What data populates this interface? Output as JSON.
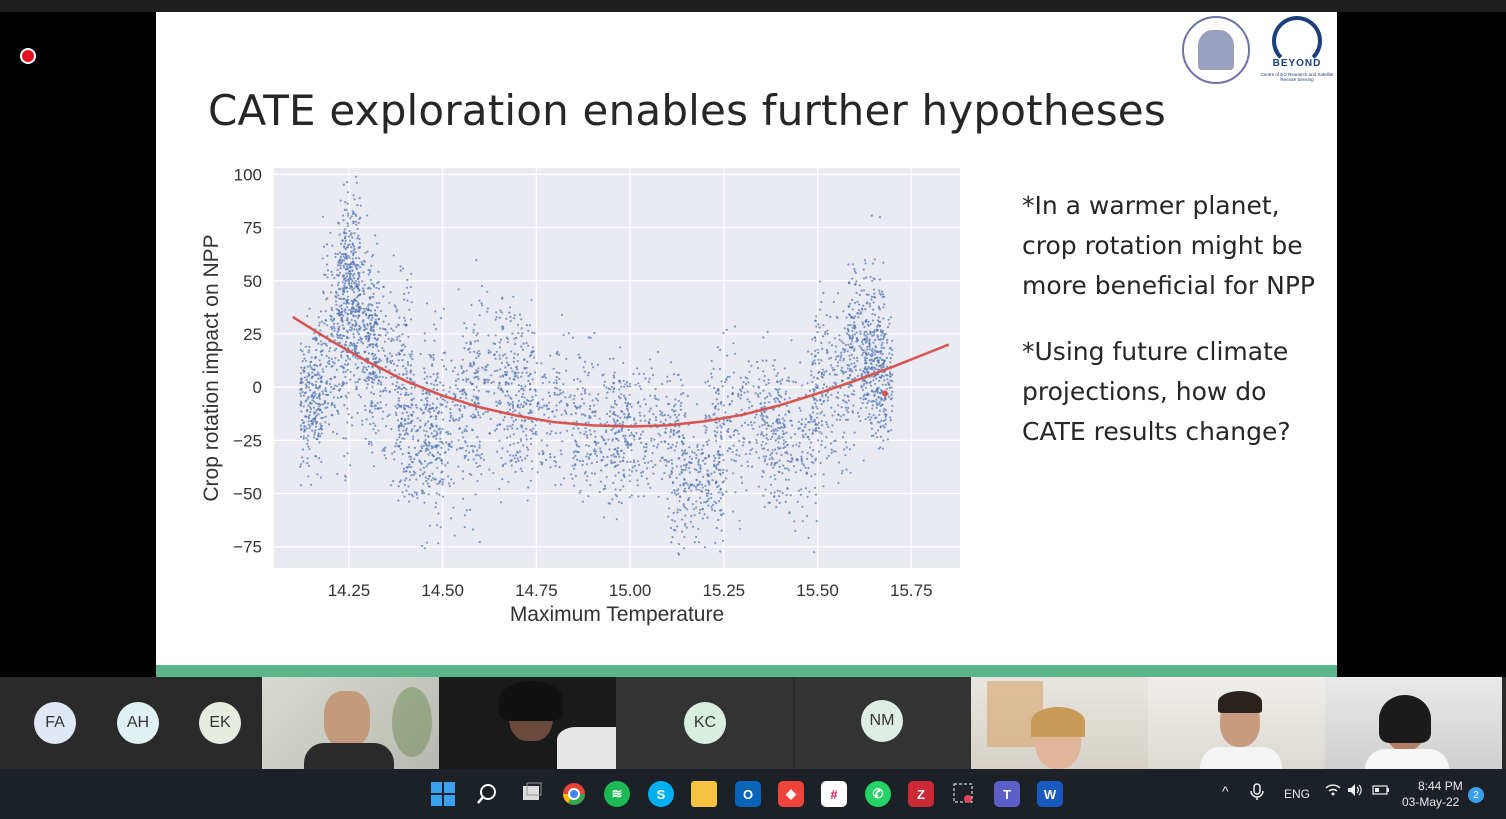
{
  "slide": {
    "title": "CATE exploration enables further hypotheses",
    "bullets": [
      "*In a warmer planet, crop rotation might be more beneficial for NPP",
      "*Using future climate projections, how do CATE results change?"
    ],
    "logo2_text": "BEYOND",
    "logo2_sub": "Centre of EO Research and Satellite Remote Sensing"
  },
  "chart_data": {
    "type": "scatter",
    "xlabel": "Maximum Temperature",
    "ylabel": "Crop rotation impact on NPP",
    "xticks": [
      14.25,
      14.5,
      14.75,
      15.0,
      15.25,
      15.5,
      15.75
    ],
    "xtick_labels": [
      "14.25",
      "14.50",
      "14.75",
      "15.00",
      "15.25",
      "15.50",
      "15.75"
    ],
    "yticks": [
      100,
      75,
      50,
      25,
      0,
      -25,
      -50,
      -75
    ],
    "ytick_labels": [
      "100",
      "75",
      "50",
      "25",
      "0",
      "−25",
      "−50",
      "−75"
    ],
    "xlim": [
      14.05,
      15.88
    ],
    "ylim": [
      -85,
      103
    ],
    "grid": true,
    "point_color": "#4c72b0",
    "curve_color": "#d9534f",
    "highlight_point": [
      15.68,
      -3
    ],
    "fit_curve": [
      [
        14.1,
        33
      ],
      [
        14.2,
        22
      ],
      [
        14.3,
        12
      ],
      [
        14.4,
        3
      ],
      [
        14.5,
        -4
      ],
      [
        14.6,
        -9.5
      ],
      [
        14.7,
        -13.5
      ],
      [
        14.8,
        -16.5
      ],
      [
        14.9,
        -18
      ],
      [
        15.0,
        -18.5
      ],
      [
        15.1,
        -18
      ],
      [
        15.2,
        -16
      ],
      [
        15.3,
        -13
      ],
      [
        15.4,
        -8.5
      ],
      [
        15.5,
        -3
      ],
      [
        15.6,
        3
      ],
      [
        15.7,
        9.5
      ],
      [
        15.8,
        16.5
      ],
      [
        15.85,
        20
      ]
    ],
    "cloud": [
      [
        14.12,
        14.18,
        -5,
        15
      ],
      [
        14.18,
        14.26,
        20,
        25
      ],
      [
        14.22,
        14.28,
        55,
        18
      ],
      [
        14.26,
        14.33,
        25,
        20
      ],
      [
        14.3,
        14.42,
        10,
        22
      ],
      [
        14.38,
        14.5,
        -25,
        18
      ],
      [
        14.45,
        14.6,
        -15,
        22
      ],
      [
        14.55,
        14.75,
        5,
        20
      ],
      [
        14.65,
        14.85,
        -10,
        18
      ],
      [
        14.85,
        15.0,
        -20,
        18
      ],
      [
        14.95,
        15.15,
        -20,
        15
      ],
      [
        15.1,
        15.25,
        -45,
        15
      ],
      [
        15.2,
        15.4,
        -15,
        18
      ],
      [
        15.35,
        15.5,
        -25,
        18
      ],
      [
        15.48,
        15.6,
        0,
        20
      ],
      [
        15.58,
        15.68,
        25,
        18
      ],
      [
        15.62,
        15.7,
        5,
        15
      ]
    ]
  },
  "participants": [
    "FA",
    "AH",
    "EK",
    "KC",
    "NM"
  ],
  "taskbar": {
    "lang": "ENG",
    "time": "8:44 PM",
    "date": "03-May-22",
    "badge": "2"
  }
}
